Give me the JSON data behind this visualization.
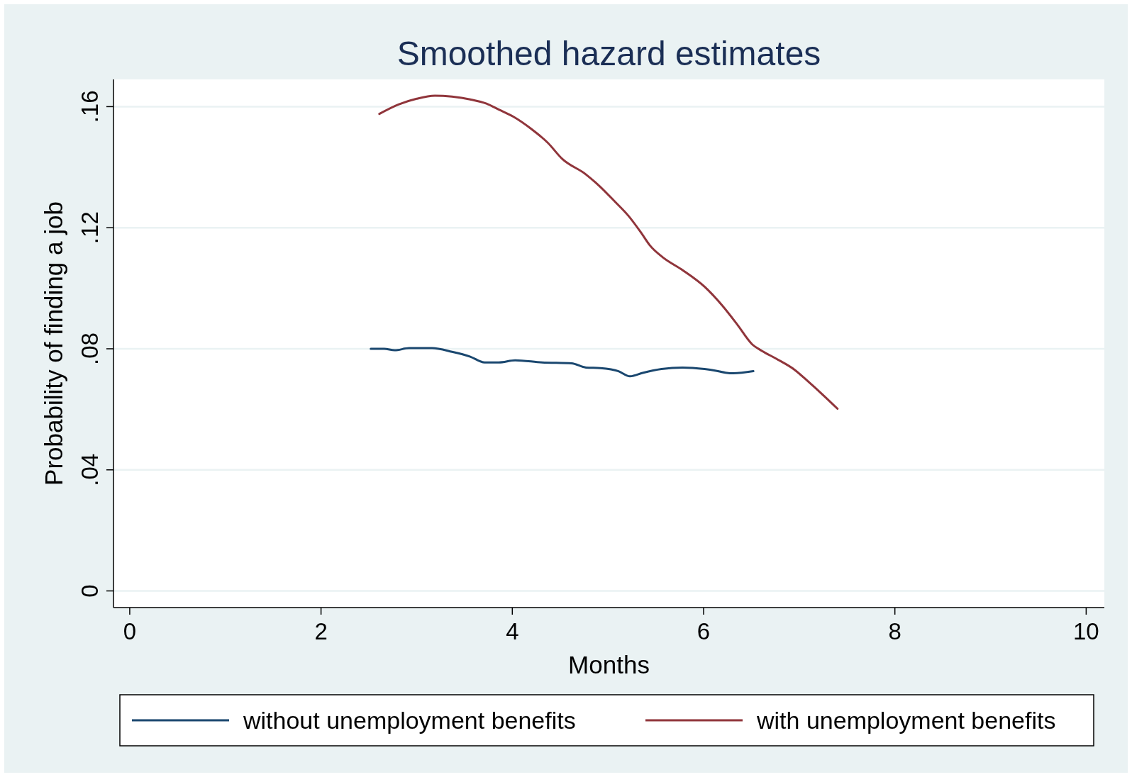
{
  "chart_data": {
    "type": "line",
    "title": "Smoothed hazard estimates",
    "xlabel": "Months",
    "ylabel": "Probability of finding a job",
    "xlim": [
      -0.17,
      10.19
    ],
    "xticks": [
      0,
      2,
      4,
      6,
      8,
      10
    ],
    "ylim": [
      -0.0055,
      0.169
    ],
    "yticks": [
      0,
      {
        "value": 0.04,
        "label": ".04"
      },
      {
        "value": 0.08,
        "label": ".08"
      },
      {
        "value": 0.12,
        "label": ".12"
      },
      {
        "value": 0.16,
        "label": ".16"
      }
    ],
    "grid": "y",
    "legend": "bottom",
    "series": [
      {
        "name": "without unemployment benefits",
        "color": "#1a476f",
        "x": [
          2.52,
          2.66,
          2.77,
          2.92,
          3.16,
          3.37,
          3.56,
          3.71,
          3.86,
          4.03,
          4.31,
          4.62,
          4.77,
          4.92,
          5.11,
          5.23,
          5.37,
          5.56,
          5.78,
          6.01,
          6.12,
          6.23,
          6.31,
          6.52
        ],
        "values": [
          0.08,
          0.08,
          0.0795,
          0.0802,
          0.0802,
          0.079,
          0.0774,
          0.0755,
          0.0755,
          0.0762,
          0.0755,
          0.0752,
          0.0738,
          0.0736,
          0.0726,
          0.0709,
          0.0721,
          0.0733,
          0.0738,
          0.0733,
          0.0728,
          0.0721,
          0.0719,
          0.0726
        ]
      },
      {
        "name": "with unemployment benefits",
        "color": "#90353b",
        "x": [
          2.61,
          2.81,
          3.0,
          3.19,
          3.37,
          3.56,
          3.73,
          3.86,
          4.01,
          4.2,
          4.37,
          4.52,
          4.77,
          4.92,
          5.07,
          5.22,
          5.35,
          5.44,
          5.57,
          5.78,
          6.01,
          6.2,
          6.35,
          6.51,
          6.61,
          6.76,
          6.95,
          7.1,
          7.25,
          7.4
        ],
        "values": [
          0.1576,
          0.1607,
          0.1626,
          0.1636,
          0.1633,
          0.1624,
          0.161,
          0.159,
          0.1567,
          0.1526,
          0.1481,
          0.1428,
          0.1376,
          0.1335,
          0.1287,
          0.1237,
          0.1182,
          0.1141,
          0.1103,
          0.106,
          0.1005,
          0.0941,
          0.0881,
          0.0814,
          0.0793,
          0.0767,
          0.0731,
          0.069,
          0.0647,
          0.0602
        ]
      }
    ]
  }
}
